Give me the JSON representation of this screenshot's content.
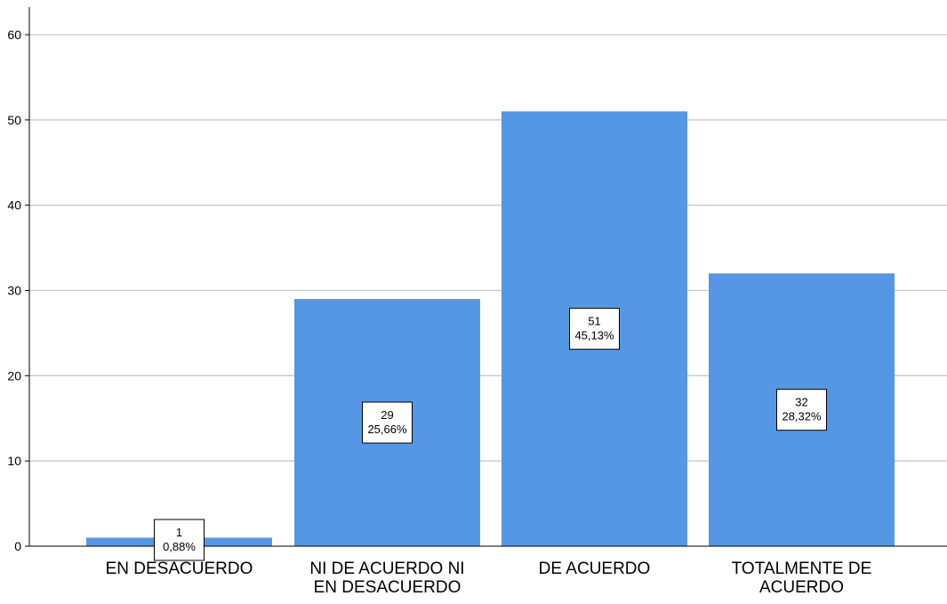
{
  "chart_data": {
    "type": "bar",
    "categories": [
      [
        "EN DESACUERDO"
      ],
      [
        "NI DE ACUERDO NI",
        "EN DESACUERDO"
      ],
      [
        "DE ACUERDO"
      ],
      [
        "TOTALMENTE DE",
        "ACUERDO"
      ]
    ],
    "values": [
      1,
      29,
      51,
      32
    ],
    "percent_labels": [
      "0,88%",
      "25,66%",
      "45,13%",
      "28,32%"
    ],
    "ylim": [
      0,
      63
    ],
    "yticks": [
      0,
      10,
      20,
      30,
      40,
      50,
      60
    ],
    "grid": true,
    "colors": {
      "bar": "#5597e5",
      "grid": "#c8c8c8",
      "axis": "#000000",
      "label_bg": "#ffffff"
    }
  }
}
